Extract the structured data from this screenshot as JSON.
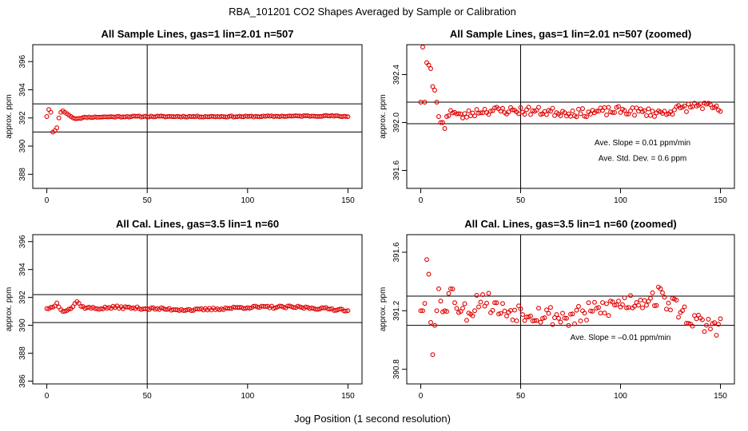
{
  "main_title": "RBA_101201  CO2 Shapes Averaged by Sample or Calibration",
  "x_axis_label": "Jog Position (1 second resolution)",
  "chart_data": [
    {
      "type": "scatter",
      "title": "All Sample Lines, gas=1 lin=2.01 n=507",
      "ylabel": "approx. ppm",
      "xlim": [
        -7,
        157
      ],
      "ylim": [
        387.0,
        397.2
      ],
      "xticks": [
        0,
        50,
        100,
        150
      ],
      "yticks": [
        388,
        390,
        392,
        394,
        396
      ],
      "hlines": [
        393.0,
        391.0
      ],
      "vline": 50,
      "annotations": [],
      "keypoints": [
        [
          0,
          392.1
        ],
        [
          1,
          392.6
        ],
        [
          2,
          392.4
        ],
        [
          3,
          391.0
        ],
        [
          4,
          391.1
        ],
        [
          5,
          391.3
        ],
        [
          6,
          392.0
        ],
        [
          7,
          392.4
        ],
        [
          8,
          392.5
        ],
        [
          9,
          392.4
        ],
        [
          10,
          392.3
        ],
        [
          11,
          392.2
        ],
        [
          12,
          392.1
        ],
        [
          14,
          391.95
        ],
        [
          20,
          392.05
        ],
        [
          40,
          392.1
        ],
        [
          60,
          392.1
        ],
        [
          100,
          392.1
        ],
        [
          140,
          392.15
        ],
        [
          150,
          392.1
        ]
      ],
      "noise": 0.04,
      "seed": 11
    },
    {
      "type": "scatter",
      "title": "All Sample Lines, gas=1 lin=2.01 n=507 (zoomed)",
      "ylabel": "approx. ppm",
      "xlim": [
        -7,
        157
      ],
      "ylim": [
        391.45,
        392.65
      ],
      "xticks": [
        0,
        50,
        100,
        150
      ],
      "yticks": [
        391.6,
        392.0,
        392.4
      ],
      "hlines": [
        392.17,
        391.99
      ],
      "vline": 50,
      "annotations": [
        {
          "text": "Ave. Slope =  0.01  ppm/min",
          "x": 111,
          "y": 391.81
        },
        {
          "text": "Ave. Std. Dev. =  0.6  ppm",
          "x": 111,
          "y": 391.68
        }
      ],
      "keypoints": [
        [
          0,
          392.17
        ],
        [
          1,
          392.63
        ],
        [
          2,
          392.17
        ],
        [
          3,
          392.5
        ],
        [
          4,
          392.48
        ],
        [
          5,
          392.45
        ],
        [
          6,
          392.3
        ],
        [
          7,
          392.27
        ],
        [
          8,
          392.17
        ],
        [
          9,
          392.05
        ],
        [
          10,
          392.0
        ],
        [
          11,
          392.0
        ],
        [
          12,
          391.95
        ],
        [
          13,
          392.05
        ],
        [
          15,
          392.1
        ],
        [
          20,
          392.05
        ],
        [
          30,
          392.1
        ],
        [
          50,
          392.1
        ],
        [
          80,
          392.08
        ],
        [
          100,
          392.1
        ],
        [
          120,
          392.08
        ],
        [
          140,
          392.15
        ],
        [
          150,
          392.1
        ]
      ],
      "noise": 0.035,
      "seed": 23
    },
    {
      "type": "scatter",
      "title": "All Cal. Lines, gas=3.5 lin=1 n=60",
      "ylabel": "approx. ppm",
      "xlim": [
        -7,
        157
      ],
      "ylim": [
        385.8,
        396.5
      ],
      "xticks": [
        0,
        50,
        100,
        150
      ],
      "yticks": [
        386,
        388,
        390,
        392,
        394,
        396
      ],
      "hlines": [
        392.2,
        390.2
      ],
      "vline": 50,
      "annotations": [],
      "keypoints": [
        [
          0,
          391.2
        ],
        [
          3,
          391.3
        ],
        [
          5,
          391.6
        ],
        [
          8,
          391.0
        ],
        [
          12,
          391.2
        ],
        [
          15,
          391.7
        ],
        [
          18,
          391.3
        ],
        [
          25,
          391.2
        ],
        [
          35,
          391.3
        ],
        [
          50,
          391.2
        ],
        [
          75,
          391.1
        ],
        [
          100,
          391.3
        ],
        [
          125,
          391.3
        ],
        [
          150,
          391.1
        ]
      ],
      "noise": 0.09,
      "seed": 37
    },
    {
      "type": "scatter",
      "title": "All Cal. Lines, gas=3.5 lin=1 n=60 (zoomed)",
      "ylabel": "approx. ppm",
      "xlim": [
        -7,
        157
      ],
      "ylim": [
        390.7,
        391.72
      ],
      "xticks": [
        0,
        50,
        100,
        150
      ],
      "yticks": [
        390.8,
        391.2,
        391.6
      ],
      "hlines": [
        391.3,
        391.1
      ],
      "vline": 50,
      "annotations": [
        {
          "text": "Ave. Slope =  –0.01  ppm/min",
          "x": 100,
          "y": 391.0
        }
      ],
      "keypoints": [
        [
          0,
          391.2
        ],
        [
          1,
          391.2
        ],
        [
          2,
          391.25
        ],
        [
          3,
          391.55
        ],
        [
          4,
          391.45
        ],
        [
          5,
          391.12
        ],
        [
          6,
          390.9
        ],
        [
          7,
          391.1
        ],
        [
          8,
          391.2
        ],
        [
          9,
          391.35
        ],
        [
          12,
          391.2
        ],
        [
          15,
          391.35
        ],
        [
          20,
          391.2
        ],
        [
          25,
          391.2
        ],
        [
          30,
          391.3
        ],
        [
          40,
          391.2
        ],
        [
          50,
          391.2
        ],
        [
          75,
          391.15
        ],
        [
          100,
          391.25
        ],
        [
          120,
          391.3
        ],
        [
          140,
          391.1
        ],
        [
          150,
          391.1
        ]
      ],
      "noise": 0.07,
      "seed": 53
    }
  ]
}
